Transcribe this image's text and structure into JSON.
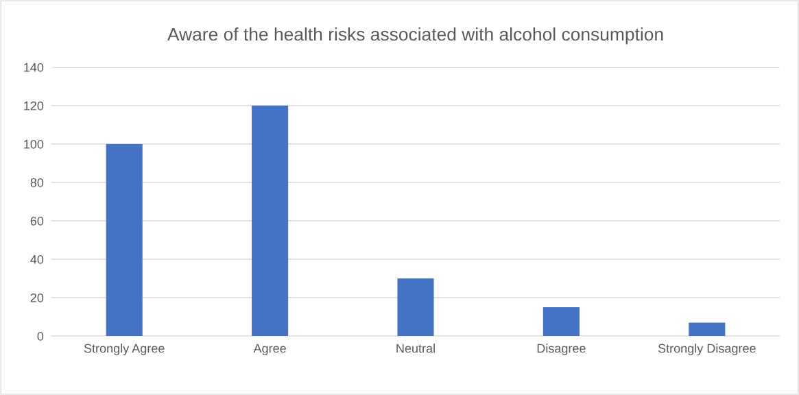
{
  "chart_data": {
    "type": "bar",
    "title": "Aware of the health risks associated with alcohol consumption",
    "categories": [
      "Strongly Agree",
      "Agree",
      "Neutral",
      "Disagree",
      "Strongly Disagree"
    ],
    "values": [
      100,
      120,
      30,
      15,
      7
    ],
    "color": "#4472c4",
    "ylim": [
      0,
      140
    ],
    "yticks": [
      0,
      20,
      40,
      60,
      80,
      100,
      120,
      140
    ],
    "grid": "y"
  }
}
